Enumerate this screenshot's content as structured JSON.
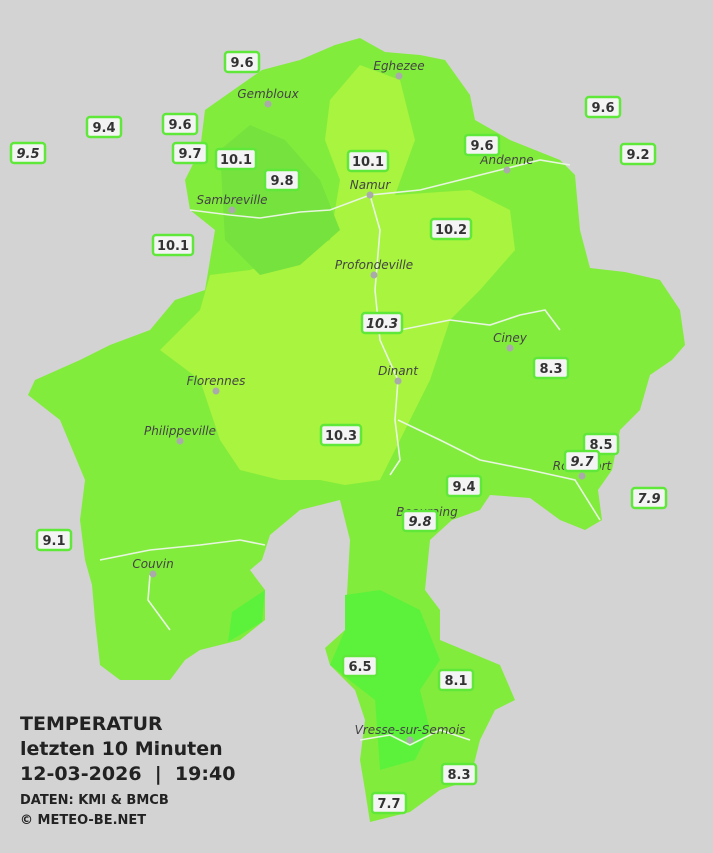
{
  "header": {
    "title": "TEMPERATUR",
    "subtitle": "letzten 10 Minuten",
    "datetime": "12-03-2026  |  19:40",
    "source": "DATEN: KMI & BMCB",
    "copyright": "© METEO-BE.NET"
  },
  "cities": [
    "Eghezee",
    "Gembloux",
    "Andenne",
    "Namur",
    "Sambreville",
    "Profondeville",
    "Ciney",
    "Dinant",
    "Florennes",
    "Philippeville",
    "Couvin",
    "Rochefort",
    "Beauraing",
    "Vresse-sur-Semois"
  ],
  "stations": [
    {
      "value": 9.6
    },
    {
      "value": 9.4
    },
    {
      "value": 9.6
    },
    {
      "value": 9.5,
      "italic": true
    },
    {
      "value": 9.7
    },
    {
      "value": 10.1
    },
    {
      "value": 9.8
    },
    {
      "value": 10.1
    },
    {
      "value": 9.6
    },
    {
      "value": 9.6
    },
    {
      "value": 9.2
    },
    {
      "value": 10.2
    },
    {
      "value": 10.1
    },
    {
      "value": 10.3,
      "italic": true
    },
    {
      "value": 8.3
    },
    {
      "value": 10.3
    },
    {
      "value": 8.5
    },
    {
      "value": 9.7,
      "italic": true
    },
    {
      "value": 9.4
    },
    {
      "value": 9.8,
      "italic": true
    },
    {
      "value": 7.9,
      "italic": true
    },
    {
      "value": 9.1
    },
    {
      "value": 6.5
    },
    {
      "value": 8.1
    },
    {
      "value": 8.3
    },
    {
      "value": 7.7
    }
  ]
}
